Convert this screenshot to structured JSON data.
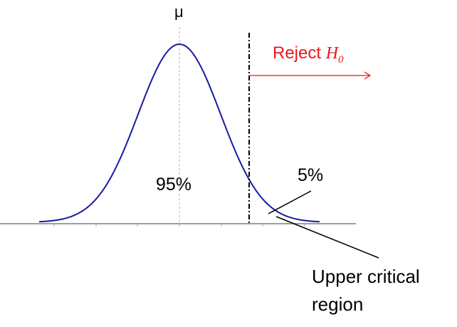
{
  "labels": {
    "mean": "μ",
    "reject_prefix": "Reject ",
    "reject_h": "H",
    "reject_sub": "0",
    "acceptance_pct": "95%",
    "tail_pct": "5%",
    "region_line1": "Upper critical",
    "region_line2": "region"
  },
  "colors": {
    "curve": "#1a1aa6",
    "axis": "#9e9e9e",
    "critical_line": "#000000",
    "reject": "#e8191c",
    "text": "#000000"
  }
}
